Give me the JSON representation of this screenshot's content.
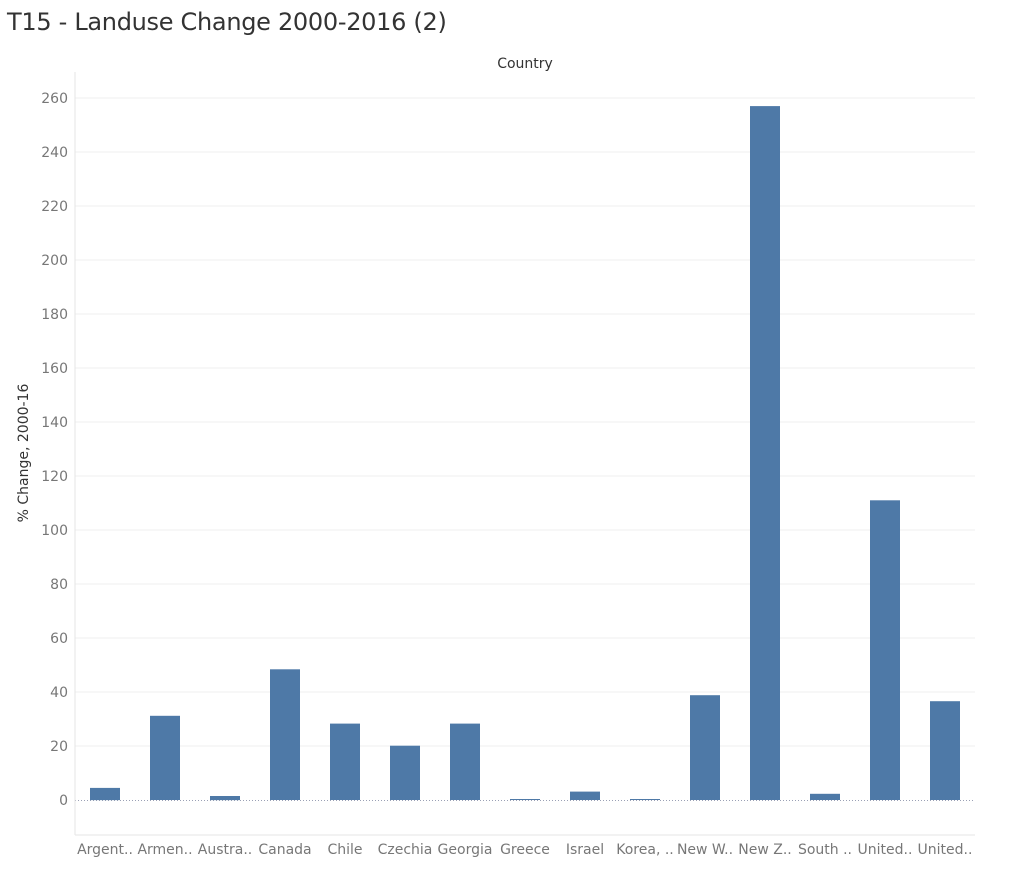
{
  "page": {
    "title": "T15 - Landuse Change 2000-2016 (2)"
  },
  "colors": {
    "bar": "#4e79a7",
    "grid": "#efefef",
    "axis_text": "#777777",
    "label_text": "#333333"
  },
  "chart_data": {
    "type": "bar",
    "title": "T15 - Landuse Change 2000-2016 (2)",
    "column_header": "Country",
    "xlabel": "",
    "ylabel": "% Change, 2000-16",
    "categories": [
      "Argent..",
      "Armen..",
      "Austra..",
      "Canada",
      "Chile",
      "Czechia",
      "Georgia",
      "Greece",
      "Israel",
      "Korea, ..",
      "New W..",
      "New Z..",
      "South ..",
      "United..",
      "United.."
    ],
    "values": [
      4.5,
      31.2,
      1.5,
      48.4,
      28.3,
      20.1,
      28.3,
      0.3,
      3.1,
      0.2,
      38.8,
      257,
      2.3,
      111,
      36.6
    ],
    "yticks": [
      0,
      20,
      40,
      60,
      80,
      100,
      120,
      140,
      160,
      180,
      200,
      220,
      240,
      260
    ],
    "ylim": [
      -13,
      270
    ],
    "grid": true,
    "legend": "none"
  }
}
